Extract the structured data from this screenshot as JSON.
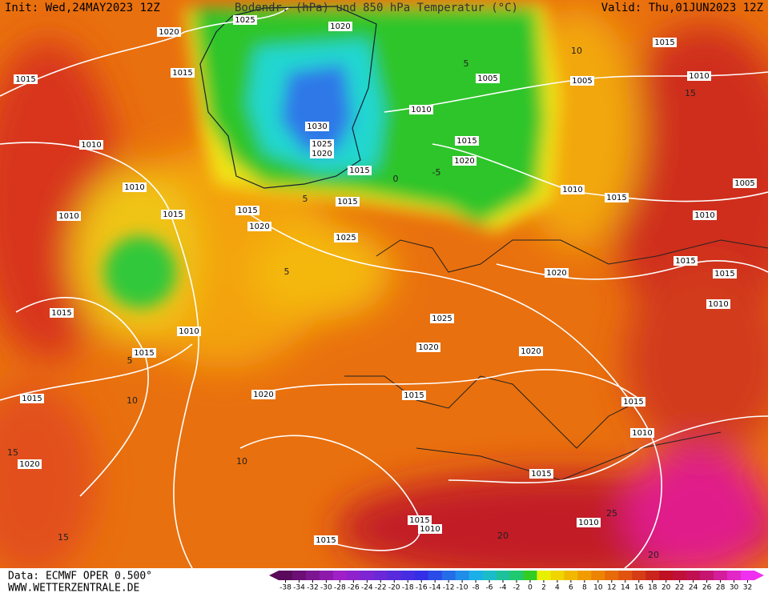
{
  "header": {
    "init": "Init: Wed,24MAY2023 12Z",
    "title": "Bodendr. (hPa) und 850 hPa Temperatur (°C)",
    "valid": "Valid: Thu,01JUN2023 12Z"
  },
  "isobar_labels": [
    "1025",
    "1020",
    "1020",
    "1015",
    "1015",
    "1005",
    "1005",
    "1015",
    "1010",
    "1010",
    "1030",
    "1025",
    "1020",
    "1015",
    "1020",
    "1015",
    "1010",
    "1010",
    "1010",
    "1015",
    "1015",
    "1015",
    "1020",
    "1025",
    "1010",
    "1015",
    "1005",
    "1010",
    "1015",
    "1015",
    "1020",
    "1010",
    "1015",
    "1010",
    "1015",
    "1025",
    "1020",
    "1020",
    "1015",
    "1020",
    "1015",
    "1015",
    "1010",
    "1020",
    "1015",
    "1015",
    "1010",
    "1010",
    "1015"
  ],
  "isotherm_labels": [
    "10",
    "5",
    "0",
    "-5",
    "5",
    "5",
    "10",
    "15",
    "15",
    "20",
    "25",
    "20",
    "15",
    "10",
    "5"
  ],
  "legend": {
    "ticks": [
      -38,
      -34,
      -32,
      -30,
      -28,
      -26,
      -24,
      -22,
      -20,
      -18,
      -16,
      -14,
      -12,
      -10,
      -8,
      -6,
      -4,
      -2,
      0,
      2,
      4,
      6,
      8,
      10,
      12,
      14,
      16,
      18,
      20,
      22,
      24,
      26,
      28,
      30,
      32
    ]
  },
  "footer": {
    "data": "Data: ECMWF OPER 0.500°",
    "site": "WWW.WETTERZENTRALE.DE"
  }
}
